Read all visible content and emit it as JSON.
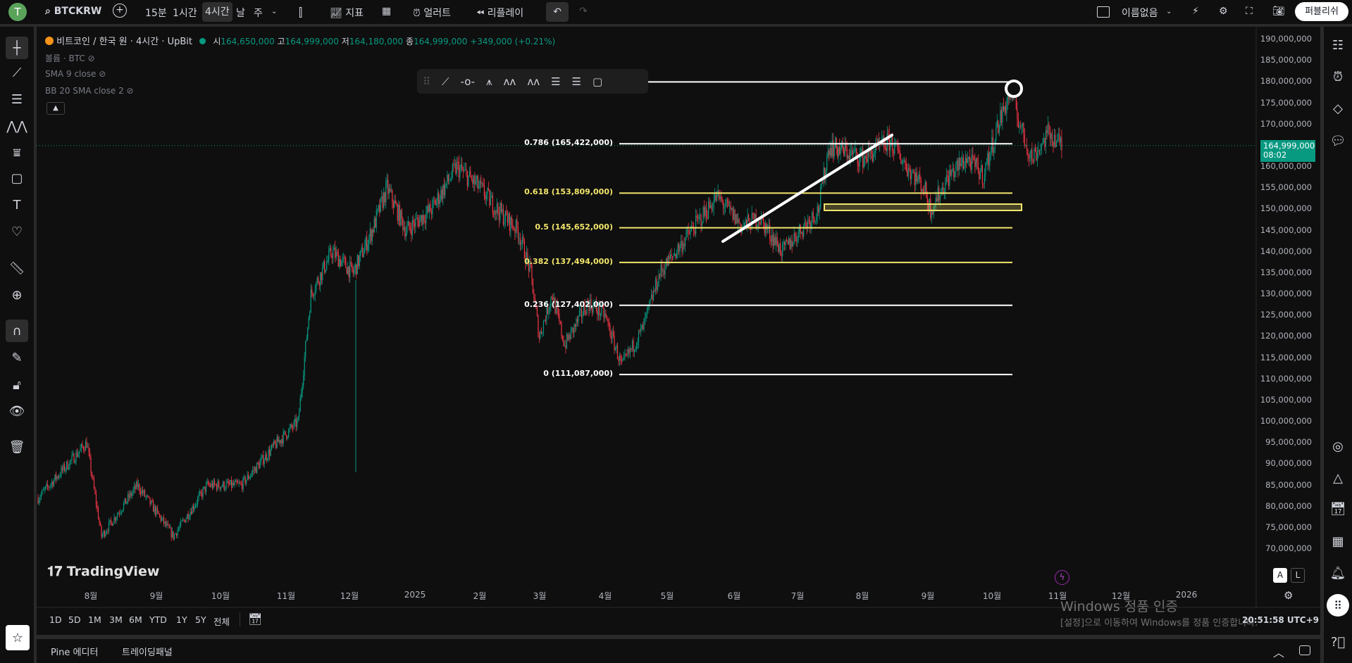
{
  "topbar": {
    "avatar": "T",
    "symbol": "BTCKRW",
    "intervals": [
      "15분",
      "1시간",
      "4시간",
      "날",
      "주"
    ],
    "active_interval": "4시간",
    "indicators": "지표",
    "alert": "얼러트",
    "replay": "리플레이",
    "layout_name": "이름없음",
    "publish": "퍼블리쉬"
  },
  "legend": {
    "title": "비트코인 / 한국 원 · 4시간 · UpBit",
    "o_label": "시",
    "o": "164,650,000",
    "h_label": "고",
    "h": "164,999,000",
    "l_label": "저",
    "l": "164,180,000",
    "c_label": "종",
    "c": "164,999,000",
    "change": "+349,000 (+0.21%)",
    "indicators": [
      "볼륨 · BTC",
      "SMA 9 close",
      "BB 20 SMA close 2"
    ]
  },
  "price_axis": {
    "labels": [
      "190,000,000",
      "185,000,000",
      "180,000,000",
      "175,000,000",
      "170,000,000",
      "160,000,000",
      "155,000,000",
      "150,000,000",
      "145,000,000",
      "140,000,000",
      "135,000,000",
      "130,000,000",
      "125,000,000",
      "120,000,000",
      "115,000,000",
      "110,000,000",
      "105,000,000",
      "100,000,000",
      "95,000,000",
      "90,000,000",
      "85,000,000",
      "80,000,000",
      "75,000,000",
      "70,000,000"
    ],
    "current_price": "164,999,000",
    "countdown": "08:02"
  },
  "time_axis": {
    "labels": [
      "8월",
      "9월",
      "10월",
      "11월",
      "12월",
      "2025",
      "2월",
      "3월",
      "4월",
      "5월",
      "6월",
      "7월",
      "8월",
      "9월",
      "10월",
      "11월",
      "12월",
      "2026"
    ]
  },
  "fib": {
    "levels": [
      {
        "label": "0.786 (165,422,000)",
        "price": 165422000,
        "color": "#ffffff"
      },
      {
        "label": "0.618 (153,809,000)",
        "price": 153809000,
        "color": "#f2e56b"
      },
      {
        "label": "0.5 (145,652,000)",
        "price": 145652000,
        "color": "#f2e56b"
      },
      {
        "label": "0.382 (137,494,000)",
        "price": 137494000,
        "color": "#f2e56b"
      },
      {
        "label": "0.236 (127,402,000)",
        "price": 127402000,
        "color": "#ffffff"
      },
      {
        "label": "0 (111,087,000)",
        "price": 111087000,
        "color": "#ffffff"
      }
    ],
    "top_price": 180000000
  },
  "chart_data": {
    "type": "candlestick",
    "interval": "4시간",
    "waypoints": [
      [
        "2024-07-07",
        82000000
      ],
      [
        "2024-07-30",
        95000000
      ],
      [
        "2024-08-06",
        73000000
      ],
      [
        "2024-08-23",
        85000000
      ],
      [
        "2024-09-09",
        73000000
      ],
      [
        "2024-09-25",
        85000000
      ],
      [
        "2024-10-11",
        85000000
      ],
      [
        "2024-10-28",
        95000000
      ],
      [
        "2024-11-07",
        100000000
      ],
      [
        "2024-11-13",
        130000000
      ],
      [
        "2024-11-23",
        140000000
      ],
      [
        "2024-12-03",
        135000000
      ],
      [
        "2024-12-12",
        145000000
      ],
      [
        "2024-12-19",
        155000000
      ],
      [
        "2024-12-28",
        145000000
      ],
      [
        "2025-01-09",
        150000000
      ],
      [
        "2025-01-21",
        160000000
      ],
      [
        "2025-02-01",
        155000000
      ],
      [
        "2025-02-09",
        150000000
      ],
      [
        "2025-02-19",
        145000000
      ],
      [
        "2025-02-25",
        135000000
      ],
      [
        "2025-03-01",
        120000000
      ],
      [
        "2025-03-07",
        130000000
      ],
      [
        "2025-03-13",
        118000000
      ],
      [
        "2025-03-24",
        128000000
      ],
      [
        "2025-04-01",
        125000000
      ],
      [
        "2025-04-09",
        113000000
      ],
      [
        "2025-04-19",
        122000000
      ],
      [
        "2025-04-27",
        135000000
      ],
      [
        "2025-05-12",
        145000000
      ],
      [
        "2025-05-24",
        153000000
      ],
      [
        "2025-06-05",
        146000000
      ],
      [
        "2025-06-13",
        148000000
      ],
      [
        "2025-06-24",
        140000000
      ],
      [
        "2025-07-04",
        146000000
      ],
      [
        "2025-07-11",
        150000000
      ],
      [
        "2025-07-16",
        165000000
      ],
      [
        "2025-08-01",
        162000000
      ],
      [
        "2025-08-14",
        166000000
      ],
      [
        "2025-08-22",
        160000000
      ],
      [
        "2025-08-30",
        155000000
      ],
      [
        "2025-09-02",
        150000000
      ],
      [
        "2025-09-11",
        158000000
      ],
      [
        "2025-09-19",
        162000000
      ],
      [
        "2025-09-27",
        158000000
      ],
      [
        "2025-10-04",
        170000000
      ],
      [
        "2025-10-10",
        178000000
      ],
      [
        "2025-10-16",
        167000000
      ],
      [
        "2025-10-20",
        162000000
      ],
      [
        "2025-10-28",
        168000000
      ],
      [
        "2025-11-03",
        165000000
      ]
    ],
    "up_color": "#089981",
    "down_color": "#f23645",
    "ylim": [
      70000000,
      190000000
    ]
  },
  "range_bar": {
    "ranges": [
      "1D",
      "5D",
      "1M",
      "3M",
      "6M",
      "YTD",
      "1Y",
      "5Y",
      "전체"
    ],
    "clock": "20:51:58 UTC+9"
  },
  "brand": "TradingView",
  "scale_buttons": [
    "A",
    "L"
  ],
  "watermark": {
    "title": "Windows 정품 인증",
    "subtitle": "[설정]으로 이동하여 Windows를 정품 인증합니다."
  },
  "bottom_tabs": [
    "Pine 에디터",
    "트레이딩패널"
  ]
}
